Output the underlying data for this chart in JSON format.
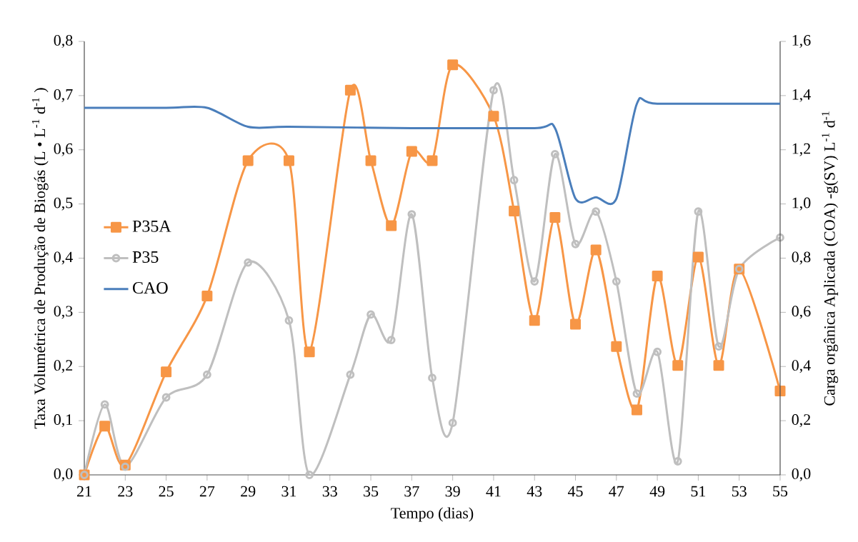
{
  "chart_data": {
    "type": "line",
    "xlabel": "Tempo (dias)",
    "ylabel": "Taxa Volumétrica de Produção de Biogás (L • L$^{-1}$ d$^{-1}$ )",
    "y2label": "Carga orgânica Aplicada (COA) -g(SV) L$^{-1}$ d$^{-1}$",
    "x": [
      21,
      22,
      23,
      25,
      27,
      29,
      31,
      32,
      34,
      35,
      36,
      37,
      38,
      39,
      41,
      42,
      43,
      44,
      45,
      46,
      47,
      48,
      49,
      50,
      51,
      52,
      53,
      55
    ],
    "series": [
      {
        "name": "P35A",
        "color": "#f79646",
        "marker": "square",
        "values": [
          0,
          0.09,
          0.018,
          0.19,
          0.33,
          0.58,
          0.58,
          0.227,
          0.71,
          0.58,
          0.46,
          0.597,
          0.58,
          0.757,
          0.662,
          0.487,
          0.285,
          0.475,
          0.278,
          0.415,
          0.237,
          0.12,
          0.367,
          0.202,
          0.402,
          0.202,
          0.38,
          0.155
        ]
      },
      {
        "name": "P35",
        "color": "#bfbfbf",
        "marker": "circle",
        "values": [
          0,
          0.13,
          0.015,
          0.143,
          0.185,
          0.392,
          0.285,
          0,
          0.185,
          0.296,
          0.249,
          0.481,
          0.179,
          0.096,
          0.71,
          0.544,
          0.357,
          0.592,
          0.426,
          0.486,
          0.357,
          0.15,
          0.227,
          0.025,
          0.486,
          0.237,
          0.38,
          0.438
        ]
      },
      {
        "name": "CAO",
        "color": "#4a7ebb",
        "marker": "none",
        "axis": "y2",
        "x": [
          21,
          25,
          27,
          29,
          31,
          37,
          43,
          44,
          45,
          46,
          47,
          48,
          49,
          55
        ],
        "values": [
          1.355,
          1.355,
          1.355,
          1.285,
          1.285,
          1.28,
          1.28,
          1.28,
          1.02,
          1.025,
          1.02,
          1.37,
          1.37,
          1.37
        ]
      }
    ],
    "xlim": [
      21,
      55
    ],
    "xticks": [
      21,
      23,
      25,
      27,
      29,
      31,
      33,
      35,
      37,
      39,
      41,
      43,
      45,
      47,
      49,
      51,
      53,
      55
    ],
    "ylim": [
      0,
      0.8
    ],
    "yticks": [
      {
        "value": 0,
        "label": "0,0"
      },
      {
        "value": 0.1,
        "label": "0,1"
      },
      {
        "value": 0.2,
        "label": "0,2"
      },
      {
        "value": 0.3,
        "label": "0,3"
      },
      {
        "value": 0.4,
        "label": "0,4"
      },
      {
        "value": 0.5,
        "label": "0,5"
      },
      {
        "value": 0.6,
        "label": "0,6"
      },
      {
        "value": 0.7,
        "label": "0,7"
      },
      {
        "value": 0.8,
        "label": "0,8"
      }
    ],
    "y2lim": [
      0,
      1.6
    ],
    "y2ticks": [
      {
        "value": 0,
        "label": "0,0"
      },
      {
        "value": 0.2,
        "label": "0,2"
      },
      {
        "value": 0.4,
        "label": "0,4"
      },
      {
        "value": 0.6,
        "label": "0,6"
      },
      {
        "value": 0.8,
        "label": "0,8"
      },
      {
        "value": 1.0,
        "label": "1,0"
      },
      {
        "value": 1.2,
        "label": "1,2"
      },
      {
        "value": 1.4,
        "label": "1,4"
      },
      {
        "value": 1.6,
        "label": "1,6"
      }
    ],
    "grid": false,
    "legend": "left"
  }
}
